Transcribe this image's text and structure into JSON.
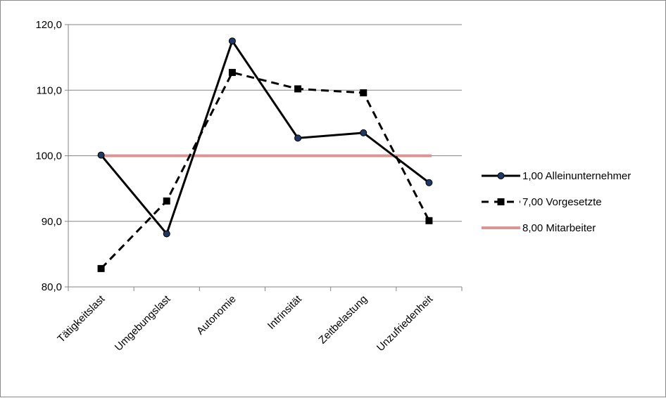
{
  "chart_data": {
    "type": "line",
    "title": "",
    "xlabel": "",
    "ylabel": "",
    "categories": [
      "Tätigkeitslast",
      "Umgebungslast",
      "Autonomie",
      "Intrinsität",
      "Zeitbelastung",
      "Unzufriedenheit"
    ],
    "ylim": [
      80,
      120
    ],
    "yticks": [
      80,
      90,
      100,
      110,
      120
    ],
    "ytick_labels": [
      "80,0",
      "90,0",
      "100,0",
      "110,0",
      "120,0"
    ],
    "grid": "horizontal major gridlines",
    "legend_position": "right",
    "series": [
      {
        "name": "1,00 Alleinunternehmer",
        "values": [
          100.1,
          88.1,
          117.5,
          102.7,
          103.5,
          95.9
        ],
        "color": "#000000",
        "line_style": "solid",
        "marker": "circle",
        "marker_fill": "#1f3864"
      },
      {
        "name": "7,00 Vorgesetzte",
        "values": [
          82.8,
          93.1,
          112.7,
          110.2,
          109.6,
          90.1
        ],
        "color": "#000000",
        "line_style": "dashed",
        "marker": "square",
        "marker_fill": "#000000"
      },
      {
        "name": "8,00 Mitarbeiter",
        "values": [
          100,
          100,
          100,
          100,
          100,
          100
        ],
        "color": "#d99694",
        "line_style": "solid",
        "marker": "none",
        "marker_fill": ""
      }
    ]
  }
}
